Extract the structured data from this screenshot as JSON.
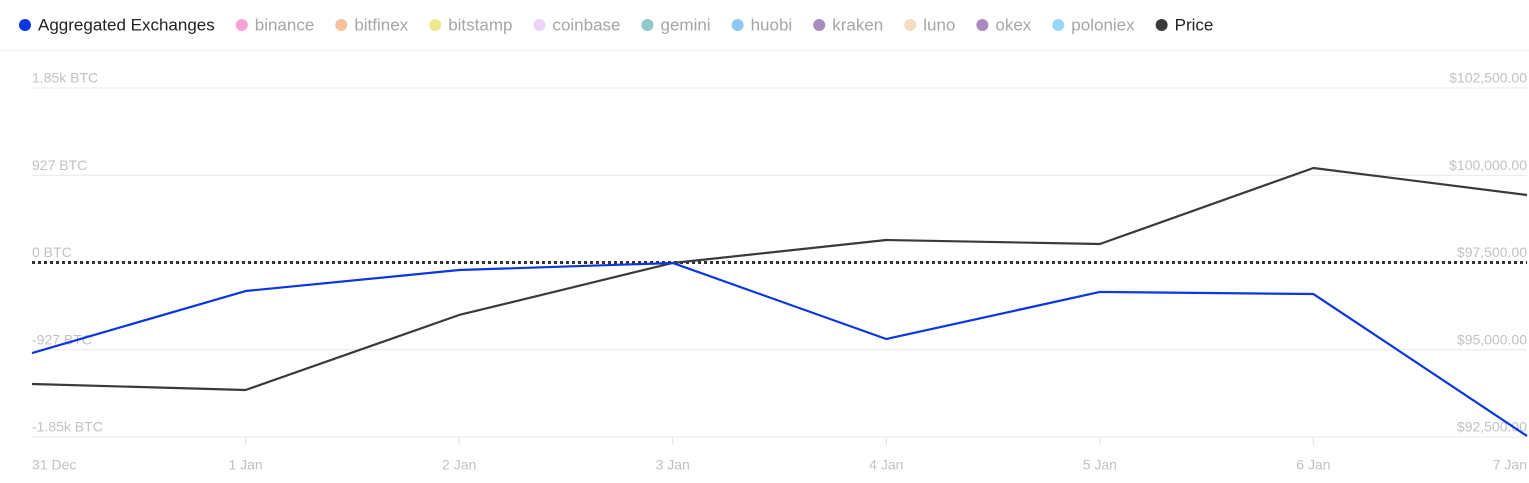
{
  "chart_data": {
    "type": "line",
    "categories": [
      "31 Dec",
      "1 Jan",
      "2 Jan",
      "3 Jan",
      "4 Jan",
      "5 Jan",
      "6 Jan",
      "7 Jan"
    ],
    "series": [
      {
        "name": "Aggregated Exchanges",
        "color": "#0b36e0",
        "values": [
          -962,
          -303,
          -80,
          -5,
          -813,
          -313,
          -335,
          -1843
        ]
      },
      {
        "name": "Price",
        "color": "#3a3a3a",
        "axis": "y2",
        "values": [
          94019,
          93847,
          95996,
          97486,
          98145,
          98030,
          100208,
          99434
        ]
      }
    ],
    "inactive_series": [
      {
        "name": "binance",
        "color": "#f7a3d6"
      },
      {
        "name": "bitfinex",
        "color": "#f6c19c"
      },
      {
        "name": "bitstamp",
        "color": "#eee98a"
      },
      {
        "name": "coinbase",
        "color": "#ecd3f7"
      },
      {
        "name": "gemini",
        "color": "#8fc9c9"
      },
      {
        "name": "huobi",
        "color": "#8fc8f2"
      },
      {
        "name": "kraken",
        "color": "#a98bbf"
      },
      {
        "name": "luno",
        "color": "#f4dcc3"
      },
      {
        "name": "okex",
        "color": "#a98bbf"
      },
      {
        "name": "poloniex",
        "color": "#98d6f7"
      }
    ],
    "ylim": [
      -1854,
      1854
    ],
    "yticks": [
      {
        "value": 1854,
        "label": "1.85k BTC"
      },
      {
        "value": 927,
        "label": "927 BTC"
      },
      {
        "value": 0,
        "label": "0 BTC"
      },
      {
        "value": -927,
        "label": "-927 BTC"
      },
      {
        "value": -1854,
        "label": "-1.85k BTC"
      }
    ],
    "y2lim": [
      92500,
      102500
    ],
    "y2ticks": [
      {
        "value": 102500,
        "label": "$102,500.00"
      },
      {
        "value": 100000,
        "label": "$100,000.00"
      },
      {
        "value": 97500,
        "label": "$97,500.00"
      },
      {
        "value": 95000,
        "label": "$95,000.00"
      },
      {
        "value": 92500,
        "label": "$92,500.00"
      }
    ],
    "grid": true
  }
}
